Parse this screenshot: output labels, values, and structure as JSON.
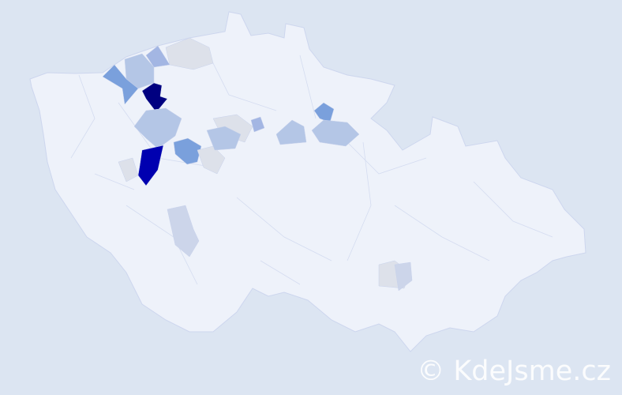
{
  "watermark": "© KdeJsme.cz",
  "colors": {
    "background": "#dce5f2",
    "base": "#eef2fa",
    "border": "#cdd6ee",
    "level_1": "#dde1ea",
    "level_2": "#b4c6e6",
    "level_3": "#a3b6e3",
    "level_4": "#7aa0dc",
    "level_5": "#0000b0",
    "level_6": "#000080"
  }
}
